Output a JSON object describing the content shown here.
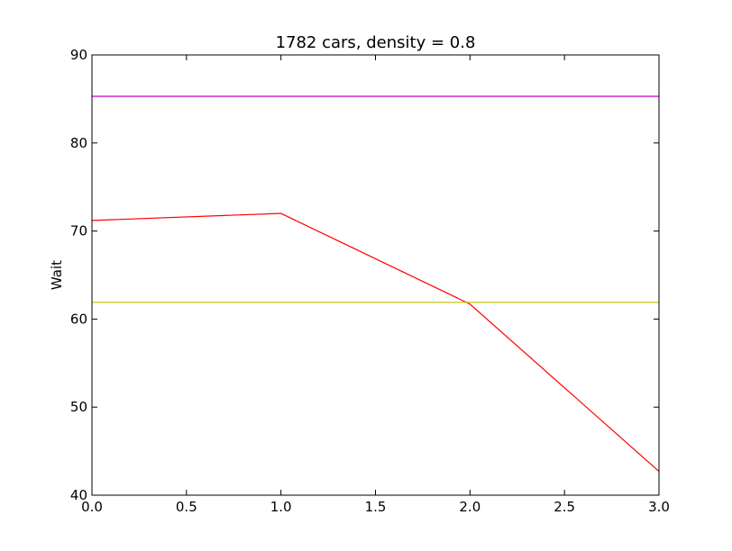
{
  "chart_data": {
    "type": "line",
    "title": "1782 cars, density = 0.8",
    "xlabel": "",
    "ylabel": "Wait",
    "xlim": [
      0,
      3
    ],
    "ylim": [
      40,
      90
    ],
    "xticks": [
      "0.0",
      "0.5",
      "1.0",
      "1.5",
      "2.0",
      "2.5",
      "3.0"
    ],
    "xtick_values": [
      0,
      0.5,
      1,
      1.5,
      2,
      2.5,
      3
    ],
    "yticks": [
      "40",
      "50",
      "60",
      "70",
      "80",
      "90"
    ],
    "ytick_values": [
      40,
      50,
      60,
      70,
      80,
      90
    ],
    "grid": false,
    "series": [
      {
        "color": "#ff0000",
        "x": [
          0,
          1,
          2,
          3
        ],
        "y": [
          71.2,
          72.0,
          61.7,
          42.7
        ]
      },
      {
        "color": "#bfbf00",
        "x": [
          0,
          3
        ],
        "y": [
          61.9,
          61.9
        ]
      },
      {
        "color": "#bf00bf",
        "x": [
          0,
          3
        ],
        "y": [
          85.3,
          85.3
        ]
      }
    ]
  }
}
